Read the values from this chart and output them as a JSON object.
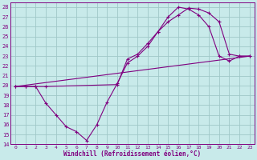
{
  "xlabel": "Windchill (Refroidissement éolien,°C)",
  "bg_color": "#c8eaea",
  "line_color": "#800080",
  "grid_color": "#a0c8c8",
  "xlim": [
    -0.5,
    23.5
  ],
  "ylim": [
    14,
    28.5
  ],
  "xticks": [
    0,
    1,
    2,
    3,
    4,
    5,
    6,
    7,
    8,
    9,
    10,
    11,
    12,
    13,
    14,
    15,
    16,
    17,
    18,
    19,
    20,
    21,
    22,
    23
  ],
  "yticks": [
    14,
    15,
    16,
    17,
    18,
    19,
    20,
    21,
    22,
    23,
    24,
    25,
    26,
    27,
    28
  ],
  "line1_x": [
    0,
    1,
    2,
    3,
    10,
    11,
    12,
    13,
    14,
    15,
    16,
    17,
    18,
    19,
    20,
    21,
    22,
    23
  ],
  "line1_y": [
    19.9,
    19.9,
    19.9,
    19.9,
    20.1,
    22.7,
    23.2,
    24.3,
    25.5,
    26.5,
    27.2,
    27.9,
    27.8,
    27.4,
    26.5,
    23.2,
    23.0,
    23.0
  ],
  "line2_x": [
    0,
    1,
    2,
    3,
    4,
    5,
    6,
    7,
    8,
    9,
    10,
    11,
    12,
    13,
    14,
    15,
    16,
    17,
    18,
    19,
    20,
    21,
    22,
    23
  ],
  "line2_y": [
    19.9,
    19.9,
    19.9,
    18.2,
    17.0,
    15.8,
    15.3,
    14.4,
    16.0,
    18.3,
    20.2,
    22.3,
    23.0,
    24.0,
    25.5,
    27.0,
    28.0,
    27.8,
    27.2,
    26.0,
    23.0,
    22.5,
    23.0,
    23.0
  ],
  "line3_x": [
    0,
    23
  ],
  "line3_y": [
    19.9,
    23.0
  ]
}
